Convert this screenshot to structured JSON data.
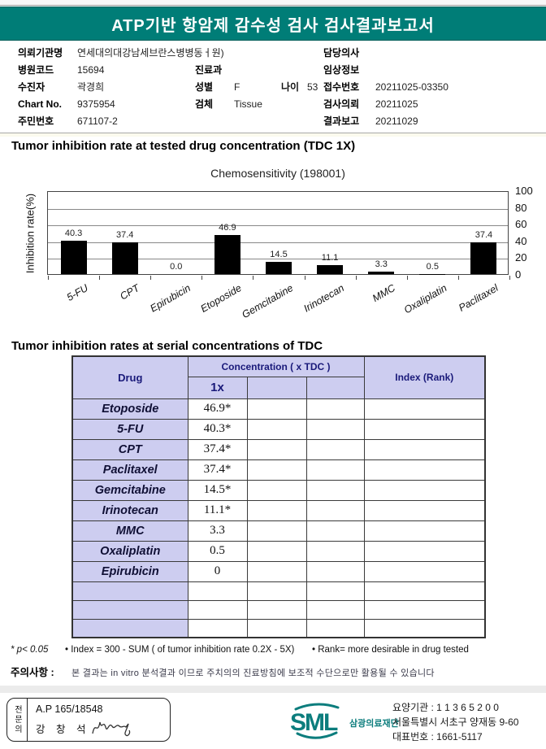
{
  "colors": {
    "header_bg": "#007d77",
    "lavender": "#cdcdf0",
    "navy": "#1a1a7a",
    "bar": "#000000",
    "logo_teal": "#0c7d7d"
  },
  "header": {
    "title": "ATP기반 항암제 감수성 검사 검사결과보고서"
  },
  "patient": {
    "left": [
      {
        "label": "의뢰기관명",
        "value": "연세대의대강남세브란스병병동ㅓ원)"
      },
      {
        "label": "병원코드",
        "value": "15694"
      },
      {
        "label": "수진자",
        "value": "곽경희"
      },
      {
        "label": "Chart No.",
        "value": "9375954"
      },
      {
        "label": "주민번호",
        "value": "671107-2"
      }
    ],
    "middle": [
      {
        "label": "진료과",
        "value": ""
      },
      {
        "label": "성별",
        "value": "F",
        "label2": "나이",
        "value2": "53"
      },
      {
        "label": "검체",
        "value": "Tissue"
      }
    ],
    "right": [
      {
        "label": "담당의사",
        "value": ""
      },
      {
        "label": "임상정보",
        "value": ""
      },
      {
        "label": "접수번호",
        "value": "20211025-03350"
      },
      {
        "label": "검사의뢰",
        "value": "20211025"
      },
      {
        "label": "결과보고",
        "value": "20211029"
      }
    ]
  },
  "sections": {
    "chart_heading": "Tumor inhibition rate at tested drug concentration (TDC 1X)",
    "table_heading": "Tumor inhibition rates at serial concentrations of TDC"
  },
  "chart_data": {
    "type": "bar",
    "title": "Chemosensitivity (198001)",
    "ylabel": "Inhibition rate(%)",
    "xlabel": "",
    "categories": [
      "5-FU",
      "CPT",
      "Epirubicin",
      "Etoposide",
      "Gemcitabine",
      "Irinotecan",
      "MMC",
      "Oxaliplatin",
      "Paclitaxel"
    ],
    "values": [
      40.3,
      37.4,
      0.0,
      46.9,
      14.5,
      11.1,
      3.3,
      0.5,
      37.4
    ],
    "value_labels": [
      "40.3",
      "37.4",
      "0.0",
      "46.9",
      "14.5",
      "11.1",
      "3.3",
      "0.5",
      "37.4"
    ],
    "ylim": [
      0,
      100
    ],
    "yticks": [
      100,
      80,
      60,
      40,
      20,
      0
    ],
    "ytick_side": "right",
    "grid": true,
    "bar_color": "#000000"
  },
  "table": {
    "header": {
      "drug": "Drug",
      "concentration": "Concentration ( x TDC )",
      "c1": "1x",
      "index": "Index (Rank)"
    },
    "rows": [
      {
        "drug": "Etoposide",
        "c1": "46.9*"
      },
      {
        "drug": "5-FU",
        "c1": "40.3*"
      },
      {
        "drug": "CPT",
        "c1": "37.4*"
      },
      {
        "drug": "Paclitaxel",
        "c1": "37.4*"
      },
      {
        "drug": "Gemcitabine",
        "c1": "14.5*"
      },
      {
        "drug": "Irinotecan",
        "c1": "11.1*"
      },
      {
        "drug": "MMC",
        "c1": "3.3"
      },
      {
        "drug": "Oxaliplatin",
        "c1": "0.5"
      },
      {
        "drug": "Epirubicin",
        "c1": "0"
      },
      {
        "drug": "",
        "c1": ""
      },
      {
        "drug": "",
        "c1": ""
      },
      {
        "drug": "",
        "c1": ""
      }
    ]
  },
  "footnotes": {
    "sig": "* p< 0.05",
    "index_formula": "• Index = 300 - SUM ( of tumor inhibition rate 0.2X  -  5X)",
    "rank_note": "• Rank= more desirable in drug tested",
    "caution_label": "주의사항 :",
    "caution_text": "본 결과는 in vitro 분석결과 이므로 주치의의 진료방침에 보조적 수단으로만 활용될 수 있습니다"
  },
  "footer": {
    "specialist_box": {
      "vertical_label": "전문의",
      "license": "A.P 165/18548",
      "doctor_name": "강 창 석"
    },
    "logo": {
      "text": "SML",
      "org": "삼광의료재단"
    },
    "contact": {
      "line1": "요양기관 : 1 1 3 6 5 2 0 0",
      "line2": "서울특별시 서초구 양재동 9-60",
      "line3": "대표번호 : 1661-5117"
    }
  }
}
